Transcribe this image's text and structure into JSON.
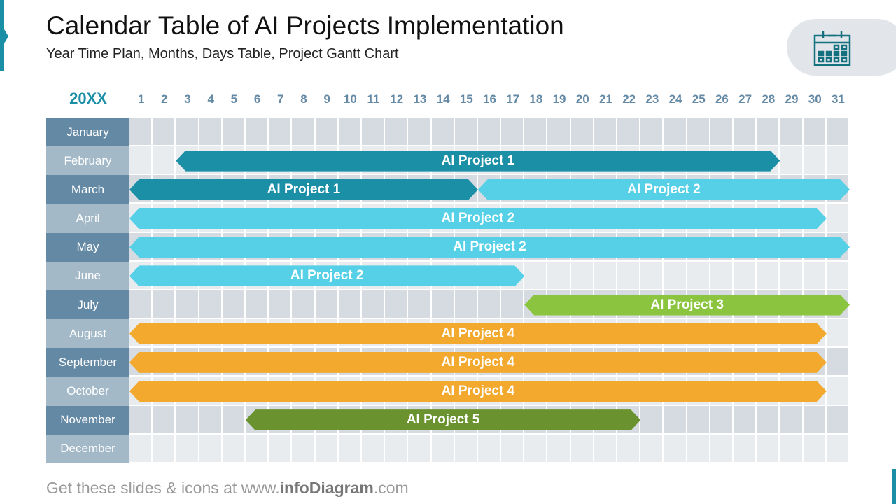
{
  "header": {
    "title": "Calendar Table of AI Projects Implementation",
    "subtitle": "Year Time Plan, Months, Days Table, Project Gantt Chart",
    "icon": "calendar-icon"
  },
  "table": {
    "year": "20XX",
    "days": [
      "1",
      "2",
      "3",
      "4",
      "5",
      "6",
      "7",
      "8",
      "9",
      "10",
      "11",
      "12",
      "13",
      "14",
      "15",
      "16",
      "17",
      "18",
      "19",
      "20",
      "21",
      "22",
      "23",
      "24",
      "25",
      "26",
      "27",
      "28",
      "29",
      "30",
      "31"
    ],
    "months": [
      "January",
      "February",
      "March",
      "April",
      "May",
      "June",
      "July",
      "August",
      "September",
      "October",
      "November",
      "December"
    ]
  },
  "colors": {
    "project1": "#1a8fa6",
    "project2": "#55d0e6",
    "project3": "#8bc43f",
    "project4": "#f2a92e",
    "project5": "#6a922e"
  },
  "bars": [
    {
      "label": "AI Project 1",
      "month": 1,
      "start": 3,
      "end": 28,
      "color": "#1a8fa6"
    },
    {
      "label": "AI Project 1",
      "month": 2,
      "start": 1,
      "end": 15,
      "color": "#1a8fa6"
    },
    {
      "label": "AI Project 2",
      "month": 2,
      "start": 16,
      "end": 31,
      "color": "#55d0e6"
    },
    {
      "label": "AI Project 2",
      "month": 3,
      "start": 1,
      "end": 30,
      "color": "#55d0e6"
    },
    {
      "label": "AI Project 2",
      "month": 4,
      "start": 1,
      "end": 31,
      "color": "#55d0e6"
    },
    {
      "label": "AI Project 2",
      "month": 5,
      "start": 1,
      "end": 17,
      "color": "#55d0e6"
    },
    {
      "label": "AI Project 3",
      "month": 6,
      "start": 18,
      "end": 31,
      "color": "#8bc43f"
    },
    {
      "label": "AI Project 4",
      "month": 7,
      "start": 1,
      "end": 30,
      "color": "#f2a92e"
    },
    {
      "label": "AI Project 4",
      "month": 8,
      "start": 1,
      "end": 30,
      "color": "#f2a92e"
    },
    {
      "label": "AI Project 4",
      "month": 9,
      "start": 1,
      "end": 30,
      "color": "#f2a92e"
    },
    {
      "label": "AI Project 5",
      "month": 10,
      "start": 6,
      "end": 22,
      "color": "#6a922e"
    }
  ],
  "footer": {
    "prefix": "Get these slides & icons at www.",
    "brand": "infoDiagram",
    "suffix": ".com"
  }
}
